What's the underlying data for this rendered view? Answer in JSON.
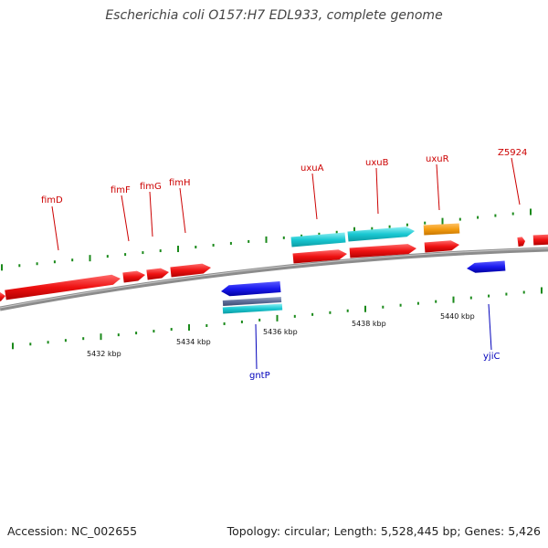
{
  "title": "Escherichia coli O157:H7 EDL933, complete genome",
  "footer": {
    "accession": "Accession: NC_002655",
    "summary": "Topology: circular; Length: 5,528,445 bp; Genes: 5,426"
  },
  "colors": {
    "forward_gene": "#ee1111",
    "reverse_gene": "#1a1aee",
    "cyan_feature": "#19c8d2",
    "orange_feature": "#f39c12",
    "tick": "#1b8a1b",
    "backbone": "#8c8c8c",
    "forward_label": "#cc0000",
    "reverse_label": "#0000bb"
  },
  "tick_labels": [
    "5432 kbp",
    "5434 kbp",
    "5436 kbp",
    "5438 kbp",
    "5440 kbp"
  ],
  "gene_labels": {
    "forward": [
      "fimD",
      "fimF",
      "fimG",
      "fimH",
      "uxuA",
      "uxuB",
      "uxuR",
      "Z5924"
    ],
    "reverse": [
      "gntP",
      "yjiC"
    ]
  }
}
